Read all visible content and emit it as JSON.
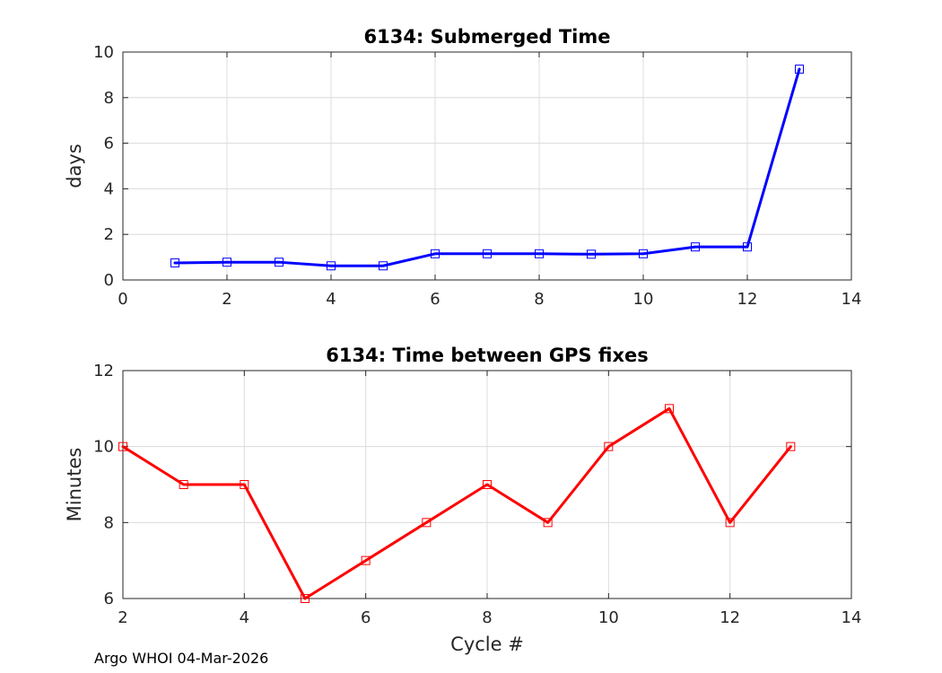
{
  "footer_text": "Argo WHOI 04-Mar-2026",
  "chart_data": [
    {
      "type": "line",
      "title": "6134: Submerged Time",
      "xlabel": "",
      "ylabel": "days",
      "xlim": [
        0,
        14
      ],
      "ylim": [
        0,
        10
      ],
      "xticks": [
        0,
        2,
        4,
        6,
        8,
        10,
        12,
        14
      ],
      "yticks": [
        0,
        2,
        4,
        6,
        8,
        10
      ],
      "grid": true,
      "marker": "square",
      "series": [
        {
          "color": "#0000ff",
          "x": [
            1,
            2,
            3,
            4,
            5,
            6,
            7,
            8,
            9,
            10,
            11,
            12,
            13
          ],
          "y": [
            0.75,
            0.78,
            0.78,
            0.62,
            0.62,
            1.15,
            1.15,
            1.15,
            1.13,
            1.15,
            1.45,
            1.45,
            9.25
          ]
        }
      ]
    },
    {
      "type": "line",
      "title": "6134: Time between GPS fixes",
      "xlabel": "Cycle #",
      "ylabel": "Minutes",
      "xlim": [
        2,
        14
      ],
      "ylim": [
        6,
        12
      ],
      "xticks": [
        2,
        4,
        6,
        8,
        10,
        12,
        14
      ],
      "yticks": [
        6,
        8,
        10,
        12
      ],
      "grid": true,
      "marker": "square",
      "series": [
        {
          "color": "#ff0000",
          "x": [
            2,
            3,
            4,
            5,
            6,
            7,
            8,
            9,
            10,
            11,
            12,
            13
          ],
          "y": [
            10,
            9,
            9,
            6,
            7,
            8,
            9,
            8,
            10,
            11,
            8,
            10
          ]
        }
      ]
    }
  ]
}
